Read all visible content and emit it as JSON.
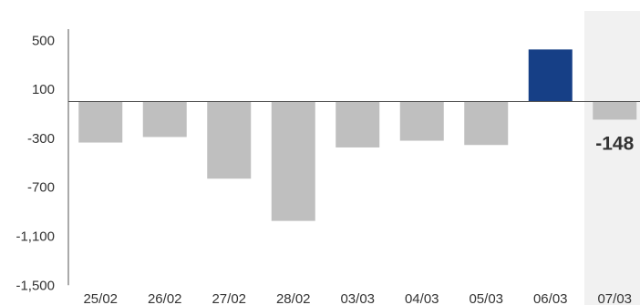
{
  "chart_data": {
    "type": "bar",
    "title": "",
    "xlabel": "",
    "ylabel": "",
    "categories": [
      "25/02",
      "26/02",
      "27/02",
      "28/02",
      "03/03",
      "04/03",
      "05/03",
      "06/03",
      "07/03"
    ],
    "values": [
      -335,
      -290,
      -630,
      -975,
      -375,
      -320,
      -355,
      425,
      -148
    ],
    "ylim": [
      -1500,
      750
    ],
    "yticks": [
      500,
      100,
      -300,
      -700,
      -1100,
      -1500
    ],
    "ytick_labels": [
      "500",
      "100",
      "-300",
      "-700",
      "-1,100",
      "-1,500"
    ],
    "grid": false,
    "highlight_index": 8,
    "data_labels": [
      {
        "index": 8,
        "text": "-148"
      }
    ],
    "colors": {
      "default_bar": "#bfbfbf",
      "positive_bar": "#163f86",
      "highlight_bg": "#f1f1f1",
      "axis": "#555555",
      "text": "#333333"
    }
  }
}
